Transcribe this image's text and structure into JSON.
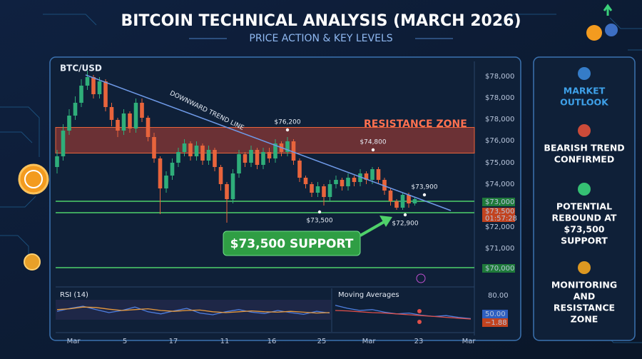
{
  "title": "BITCOIN TECHNICAL ANALYSIS (MARCH 2026)",
  "subtitle": "PRICE ACTION & KEY LEVELS",
  "chart": {
    "type": "candlestick",
    "symbol": "BTC/USD",
    "ylim": [
      69500,
      79500
    ],
    "up_color": "#2fae7a",
    "down_color": "#e8643c",
    "resistance_zone": [
      75450,
      76650
    ],
    "candles": [
      [
        74800,
        75600,
        74500,
        75300
      ],
      [
        75300,
        76800,
        75100,
        76500
      ],
      [
        76500,
        77500,
        76300,
        77200
      ],
      [
        77200,
        78100,
        77000,
        77800
      ],
      [
        77800,
        78900,
        77600,
        78600
      ],
      [
        78600,
        79300,
        78400,
        79000
      ],
      [
        79000,
        79100,
        78000,
        78200
      ],
      [
        78200,
        79000,
        78000,
        78800
      ],
      [
        78800,
        78900,
        77400,
        77600
      ],
      [
        77600,
        77800,
        76700,
        77000
      ],
      [
        77000,
        77100,
        76200,
        76500
      ],
      [
        76500,
        77500,
        76300,
        77300
      ],
      [
        77300,
        77400,
        76400,
        76600
      ],
      [
        76600,
        78000,
        76400,
        77800
      ],
      [
        77800,
        78000,
        76900,
        77100
      ],
      [
        77100,
        77200,
        76000,
        76200
      ],
      [
        76200,
        76400,
        75000,
        75200
      ],
      [
        75200,
        75300,
        72600,
        73800
      ],
      [
        73800,
        74600,
        73600,
        74400
      ],
      [
        74400,
        75200,
        74200,
        75000
      ],
      [
        75000,
        75700,
        74800,
        75500
      ],
      [
        75500,
        76100,
        75300,
        75900
      ],
      [
        75900,
        76000,
        75100,
        75300
      ],
      [
        75300,
        76000,
        75100,
        75800
      ],
      [
        75800,
        75900,
        74900,
        75100
      ],
      [
        75100,
        75800,
        74900,
        75600
      ],
      [
        75600,
        75700,
        74600,
        74800
      ],
      [
        74800,
        74900,
        73700,
        74000
      ],
      [
        74000,
        74100,
        72200,
        73300
      ],
      [
        73300,
        74700,
        73100,
        74500
      ],
      [
        74500,
        75600,
        74300,
        75400
      ],
      [
        75400,
        75500,
        74800,
        75000
      ],
      [
        75000,
        75800,
        74800,
        75600
      ],
      [
        75600,
        75700,
        74700,
        74900
      ],
      [
        74900,
        75700,
        74700,
        75500
      ],
      [
        75500,
        75700,
        75000,
        75200
      ],
      [
        75200,
        76100,
        75000,
        75900
      ],
      [
        75900,
        76000,
        75300,
        75500
      ],
      [
        75500,
        76200,
        75300,
        76000
      ],
      [
        76000,
        76100,
        74900,
        75100
      ],
      [
        75100,
        75200,
        74100,
        74300
      ],
      [
        74300,
        74400,
        73800,
        74000
      ],
      [
        74000,
        74100,
        73400,
        73600
      ],
      [
        73600,
        74100,
        73400,
        73900
      ],
      [
        73900,
        74000,
        73000,
        73400
      ],
      [
        73400,
        74200,
        73200,
        74000
      ],
      [
        74000,
        74400,
        73800,
        74200
      ],
      [
        74200,
        74300,
        73700,
        73900
      ],
      [
        73900,
        74500,
        73700,
        74300
      ],
      [
        74300,
        74400,
        73900,
        74100
      ],
      [
        74100,
        74700,
        73900,
        74500
      ],
      [
        74500,
        74600,
        74000,
        74200
      ],
      [
        74200,
        74800,
        74000,
        74700
      ],
      [
        74700,
        74800,
        74000,
        74200
      ],
      [
        74200,
        74300,
        73500,
        73700
      ],
      [
        73700,
        73800,
        73000,
        73200
      ],
      [
        73200,
        73300,
        72800,
        72900
      ],
      [
        72900,
        73600,
        72800,
        73500
      ],
      [
        73500,
        73600,
        72900,
        73100
      ],
      [
        73100,
        73400,
        73000,
        73300
      ]
    ],
    "price_labels": [
      "$78,000",
      "$78,000",
      "$78,000",
      "$76,000",
      "$75,000",
      "$74,000",
      "$73,000",
      "$73,500",
      "01:57:28",
      "$72,000",
      "$71,000",
      "$70,000"
    ],
    "x_labels": [
      "Mar",
      "5",
      "17",
      "11",
      "16",
      "25",
      "Mar",
      "23",
      "Mar"
    ],
    "annotations": [
      "DOWNWARD TREND LINE",
      "RESISTANCE ZONE",
      "$76,200",
      "$74,800",
      "$73,900",
      "$73,500",
      "$72,900"
    ],
    "callout": "$73,500 SUPPORT"
  },
  "rsi": {
    "label": "RSI (14)",
    "ylim": [
      0,
      100
    ],
    "series": [
      {
        "color": "#4f7fe0",
        "values": [
          48,
          55,
          60,
          52,
          45,
          50,
          58,
          47,
          42,
          49,
          55,
          44,
          40,
          47,
          52,
          46,
          43,
          50,
          45,
          41,
          48,
          44
        ]
      },
      {
        "color": "#e89a3c",
        "values": [
          52,
          54,
          58,
          57,
          53,
          50,
          52,
          54,
          50,
          48,
          50,
          51,
          47,
          45,
          47,
          49,
          47,
          46,
          48,
          46,
          44,
          45
        ]
      }
    ]
  },
  "moving_averages": {
    "label": "Moving Averages",
    "ylim": [
      0,
      100
    ],
    "series": [
      {
        "color": "#4f7fe0",
        "values": [
          62,
          55,
          50,
          52,
          46,
          42,
          44,
          39,
          36,
          38,
          34,
          31
        ]
      },
      {
        "color": "#e0504a",
        "values": [
          50,
          49,
          47,
          45,
          44,
          42,
          40,
          38,
          36,
          34,
          32,
          30
        ]
      }
    ]
  },
  "panel_labels": [
    "80.00",
    "50.00",
    "−1.88"
  ],
  "outlook": [
    [
      "MARKET",
      "OUTLOOK"
    ],
    [
      "BEARISH TREND",
      "CONFIRMED"
    ],
    [
      "POTENTIAL",
      "REBOUND AT",
      "$73,500",
      "SUPPORT"
    ],
    [
      "MONITORING",
      "AND",
      "RESISTANCE",
      "ZONE"
    ]
  ]
}
